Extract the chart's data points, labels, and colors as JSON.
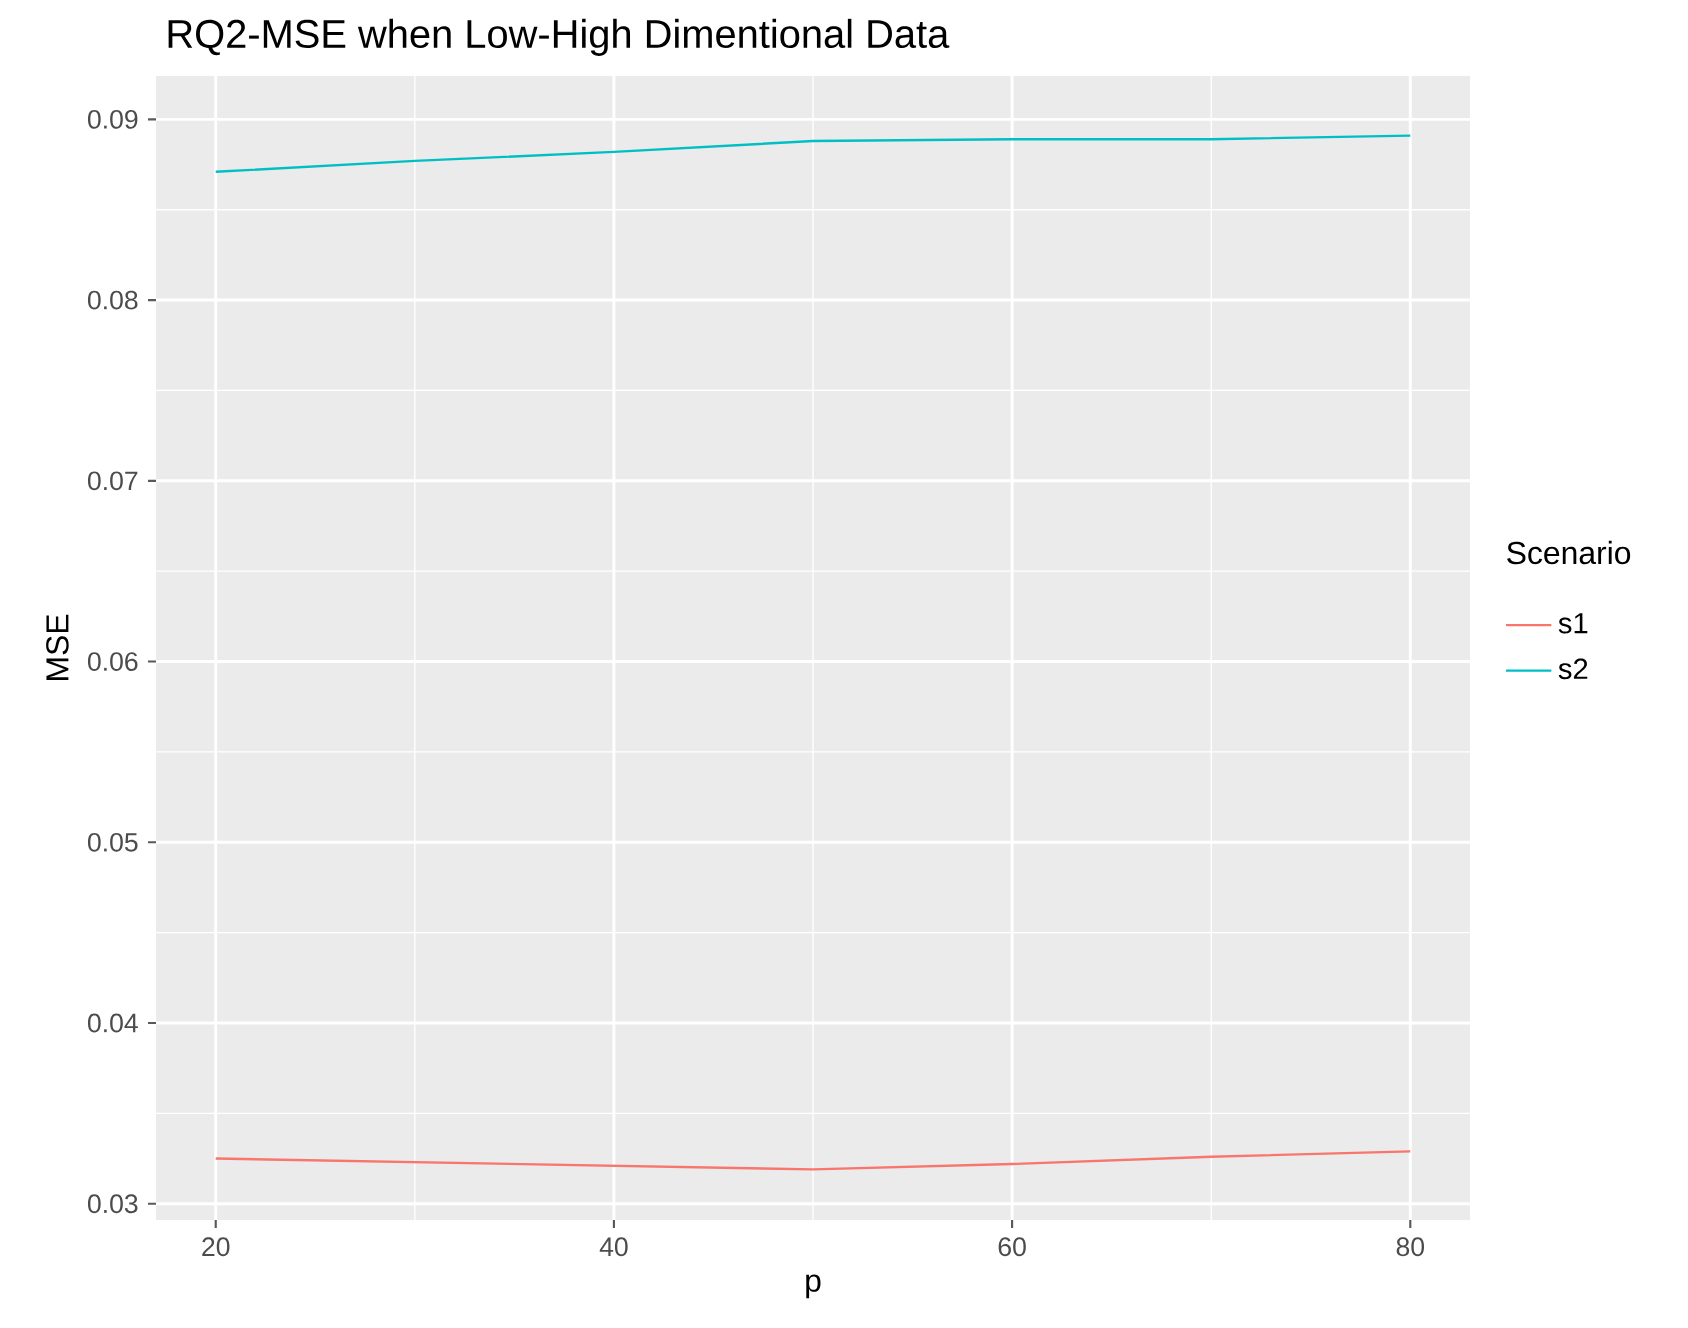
{
  "chart_data": {
    "type": "line",
    "title": "RQ2-MSE when Low-High Dimentional Data",
    "xlabel": "p",
    "ylabel": "MSE",
    "legend_title": "Scenario",
    "x": [
      20,
      30,
      40,
      50,
      60,
      70,
      80
    ],
    "series": [
      {
        "name": "s1",
        "color": "#f8766d",
        "values": [
          0.0325,
          0.0323,
          0.0321,
          0.0319,
          0.0322,
          0.0326,
          0.0329
        ]
      },
      {
        "name": "s2",
        "color": "#00bfc4",
        "values": [
          0.0871,
          0.0877,
          0.0882,
          0.0888,
          0.0889,
          0.0889,
          0.0891
        ]
      }
    ],
    "xlim": [
      17,
      83
    ],
    "ylim": [
      0.0291,
      0.0924
    ],
    "xticks": [
      20,
      40,
      60,
      80
    ],
    "yticks": [
      0.03,
      0.04,
      0.05,
      0.06,
      0.07,
      0.08,
      0.09
    ],
    "grid": true,
    "legend": "right",
    "marker": "none",
    "line_style": "solid"
  }
}
